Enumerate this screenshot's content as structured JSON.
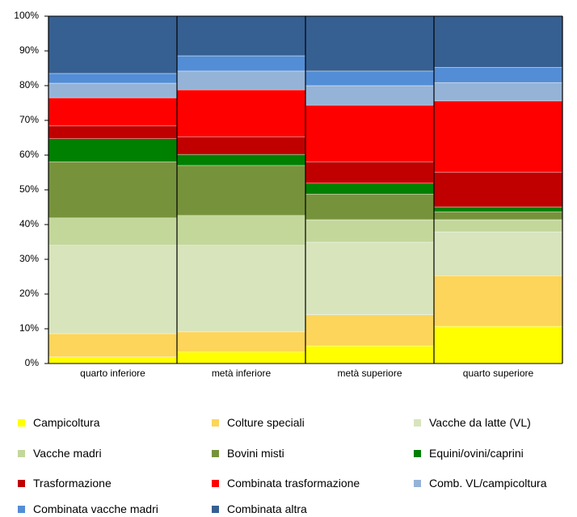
{
  "chart_data": {
    "type": "stacked-bar",
    "categories": [
      "quarto inferiore",
      "metà inferiore",
      "metà superiore",
      "quarto superiore"
    ],
    "ylim": [
      0,
      100
    ],
    "yticks": [
      {
        "value": 0,
        "label": "0%"
      },
      {
        "value": 10,
        "label": "10%"
      },
      {
        "value": 20,
        "label": "20%"
      },
      {
        "value": 30,
        "label": "30%"
      },
      {
        "value": 40,
        "label": "40%"
      },
      {
        "value": 50,
        "label": "50%"
      },
      {
        "value": 60,
        "label": "60%"
      },
      {
        "value": 70,
        "label": "70%"
      },
      {
        "value": 80,
        "label": "80%"
      },
      {
        "value": 90,
        "label": "90%"
      },
      {
        "value": 100,
        "label": "100%"
      }
    ],
    "series": [
      {
        "name": "Campicoltura",
        "color": "#ffff00",
        "values": [
          1.9,
          3.3,
          5.1,
          10.7
        ]
      },
      {
        "name": "Colture speciali",
        "color": "#fcd55a",
        "values": [
          6.7,
          5.8,
          8.9,
          14.6
        ]
      },
      {
        "name": "Vacche da latte (VL)",
        "color": "#d8e4bc",
        "values": [
          25.4,
          24.9,
          20.9,
          12.6
        ]
      },
      {
        "name": "Vacche madri",
        "color": "#c4d79b",
        "values": [
          7.9,
          8.6,
          6.5,
          3.5
        ]
      },
      {
        "name": "Bovini misti",
        "color": "#76933c",
        "values": [
          16.2,
          14.4,
          7.4,
          2.3
        ]
      },
      {
        "name": "Equini/ovini/caprini",
        "color": "#008000",
        "values": [
          6.6,
          3.2,
          3.1,
          1.4
        ]
      },
      {
        "name": "Trasformazione",
        "color": "#c00000",
        "values": [
          3.7,
          5.1,
          6.2,
          10.0
        ]
      },
      {
        "name": "Combinata trasformazione",
        "color": "#ff0000",
        "values": [
          8.1,
          13.5,
          16.3,
          20.5
        ]
      },
      {
        "name": "Comb. VL/campicoltura",
        "color": "#95b3d7",
        "values": [
          4.2,
          5.4,
          5.6,
          5.3
        ]
      },
      {
        "name": "Combinata vacche madri",
        "color": "#538dd5",
        "values": [
          2.8,
          4.4,
          4.2,
          4.4
        ]
      },
      {
        "name": "Combinata altra",
        "color": "#366092",
        "values": [
          16.5,
          11.4,
          15.8,
          14.7
        ]
      }
    ]
  }
}
